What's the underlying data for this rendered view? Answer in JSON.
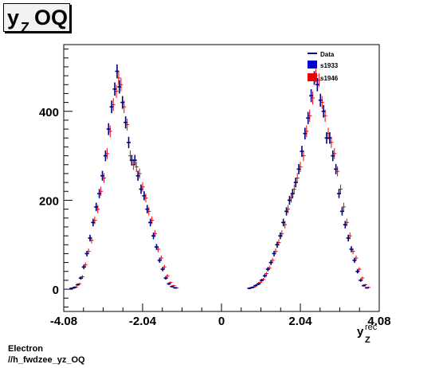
{
  "title": {
    "main": "y",
    "sub": "Z",
    "rest": " OQ"
  },
  "footer": {
    "line1": "Electron",
    "line2": "//h_fwdzee_yz_OQ"
  },
  "colors": {
    "s1933": "#0000cc",
    "s1946": "#ee0000",
    "data_line": "#000080"
  },
  "chart_data": {
    "type": "scatter",
    "xlabel": "y",
    "xlabel_sub": "Z",
    "xlabel_sup": "rec",
    "xlim": [
      -4.08,
      4.08
    ],
    "ylim": [
      -50,
      550
    ],
    "x_ticks": [
      -4.08,
      -2.04,
      0,
      2.04,
      4.08
    ],
    "x_tick_labels": [
      "-4.08",
      "-2.04",
      "0",
      "2.04",
      "4.08"
    ],
    "y_ticks": [
      0,
      200,
      400
    ],
    "y_tick_labels": [
      "0",
      "200",
      "400"
    ],
    "legend": {
      "placement": "top-right",
      "entries": [
        "Data",
        "s1933",
        "s1946"
      ]
    },
    "series": [
      {
        "name": "s1933",
        "points": [
          [
            -3.88,
            2
          ],
          [
            -3.8,
            4
          ],
          [
            -3.72,
            10
          ],
          [
            -3.64,
            25
          ],
          [
            -3.56,
            50
          ],
          [
            -3.48,
            80
          ],
          [
            -3.4,
            115
          ],
          [
            -3.32,
            150
          ],
          [
            -3.24,
            185
          ],
          [
            -3.16,
            215
          ],
          [
            -3.08,
            255
          ],
          [
            -3.0,
            300
          ],
          [
            -2.92,
            360
          ],
          [
            -2.84,
            410
          ],
          [
            -2.76,
            450
          ],
          [
            -2.7,
            490
          ],
          [
            -2.64,
            455
          ],
          [
            -2.56,
            420
          ],
          [
            -2.48,
            375
          ],
          [
            -2.4,
            330
          ],
          [
            -2.32,
            290
          ],
          [
            -2.24,
            290
          ],
          [
            -2.16,
            255
          ],
          [
            -2.08,
            225
          ],
          [
            -2.0,
            210
          ],
          [
            -1.92,
            180
          ],
          [
            -1.84,
            150
          ],
          [
            -1.76,
            120
          ],
          [
            -1.68,
            95
          ],
          [
            -1.6,
            65
          ],
          [
            -1.52,
            45
          ],
          [
            -1.44,
            25
          ],
          [
            -1.36,
            12
          ],
          [
            -1.28,
            6
          ],
          [
            -1.2,
            3
          ],
          [
            0.72,
            2
          ],
          [
            0.8,
            4
          ],
          [
            0.88,
            8
          ],
          [
            0.96,
            12
          ],
          [
            1.04,
            20
          ],
          [
            1.12,
            30
          ],
          [
            1.2,
            45
          ],
          [
            1.28,
            60
          ],
          [
            1.36,
            80
          ],
          [
            1.44,
            100
          ],
          [
            1.52,
            120
          ],
          [
            1.6,
            150
          ],
          [
            1.68,
            175
          ],
          [
            1.76,
            200
          ],
          [
            1.84,
            215
          ],
          [
            1.92,
            240
          ],
          [
            2.0,
            270
          ],
          [
            2.08,
            310
          ],
          [
            2.16,
            350
          ],
          [
            2.24,
            385
          ],
          [
            2.32,
            435
          ],
          [
            2.4,
            475
          ],
          [
            2.48,
            460
          ],
          [
            2.56,
            425
          ],
          [
            2.64,
            400
          ],
          [
            2.72,
            340
          ],
          [
            2.8,
            340
          ],
          [
            2.88,
            300
          ],
          [
            2.96,
            270
          ],
          [
            3.04,
            215
          ],
          [
            3.12,
            175
          ],
          [
            3.2,
            145
          ],
          [
            3.28,
            115
          ],
          [
            3.36,
            90
          ],
          [
            3.44,
            65
          ],
          [
            3.52,
            40
          ],
          [
            3.6,
            20
          ],
          [
            3.68,
            8
          ],
          [
            3.76,
            3
          ]
        ]
      },
      {
        "name": "s1946",
        "points": [
          [
            -3.88,
            2
          ],
          [
            -3.8,
            5
          ],
          [
            -3.72,
            12
          ],
          [
            -3.64,
            28
          ],
          [
            -3.56,
            55
          ],
          [
            -3.48,
            85
          ],
          [
            -3.4,
            110
          ],
          [
            -3.32,
            155
          ],
          [
            -3.24,
            180
          ],
          [
            -3.16,
            220
          ],
          [
            -3.08,
            250
          ],
          [
            -3.0,
            305
          ],
          [
            -2.92,
            355
          ],
          [
            -2.84,
            415
          ],
          [
            -2.76,
            445
          ],
          [
            -2.7,
            475
          ],
          [
            -2.64,
            460
          ],
          [
            -2.56,
            410
          ],
          [
            -2.48,
            370
          ],
          [
            -2.4,
            300
          ],
          [
            -2.32,
            280
          ],
          [
            -2.24,
            275
          ],
          [
            -2.16,
            260
          ],
          [
            -2.08,
            230
          ],
          [
            -2.0,
            205
          ],
          [
            -1.92,
            175
          ],
          [
            -1.84,
            155
          ],
          [
            -1.76,
            125
          ],
          [
            -1.68,
            90
          ],
          [
            -1.6,
            70
          ],
          [
            -1.52,
            50
          ],
          [
            -1.44,
            30
          ],
          [
            -1.36,
            15
          ],
          [
            -1.28,
            8
          ],
          [
            -1.2,
            3
          ],
          [
            0.72,
            3
          ],
          [
            0.8,
            5
          ],
          [
            0.88,
            10
          ],
          [
            0.96,
            15
          ],
          [
            1.04,
            22
          ],
          [
            1.12,
            35
          ],
          [
            1.2,
            48
          ],
          [
            1.28,
            65
          ],
          [
            1.36,
            85
          ],
          [
            1.44,
            105
          ],
          [
            1.52,
            125
          ],
          [
            1.6,
            145
          ],
          [
            1.68,
            180
          ],
          [
            1.76,
            205
          ],
          [
            1.84,
            225
          ],
          [
            1.92,
            250
          ],
          [
            2.0,
            275
          ],
          [
            2.08,
            300
          ],
          [
            2.16,
            355
          ],
          [
            2.24,
            390
          ],
          [
            2.32,
            430
          ],
          [
            2.4,
            480
          ],
          [
            2.48,
            470
          ],
          [
            2.56,
            420
          ],
          [
            2.64,
            390
          ],
          [
            2.72,
            350
          ],
          [
            2.8,
            330
          ],
          [
            2.88,
            305
          ],
          [
            2.96,
            265
          ],
          [
            3.04,
            225
          ],
          [
            3.12,
            185
          ],
          [
            3.2,
            150
          ],
          [
            3.28,
            120
          ],
          [
            3.36,
            85
          ],
          [
            3.44,
            70
          ],
          [
            3.52,
            45
          ],
          [
            3.6,
            25
          ],
          [
            3.68,
            10
          ],
          [
            3.76,
            4
          ]
        ]
      }
    ]
  }
}
